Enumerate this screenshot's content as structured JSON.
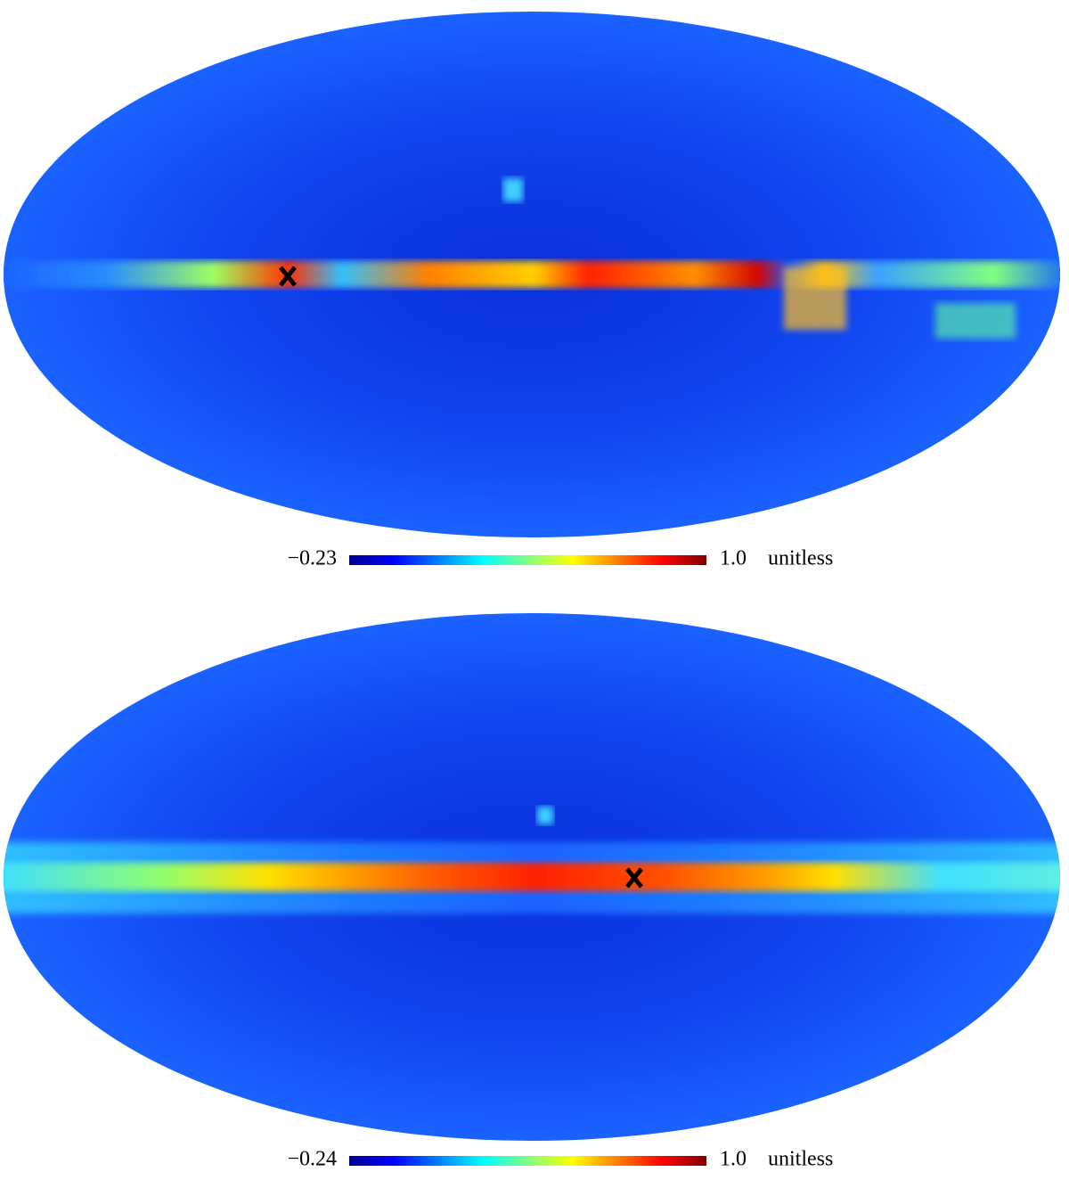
{
  "maps": [
    {
      "colorbar": {
        "min": {
          "value": -0.23,
          "label": "−0.23"
        },
        "max": {
          "value": 1.0,
          "label": "1.0"
        },
        "unit": "unitless"
      }
    },
    {
      "colorbar": {
        "min": {
          "value": -0.24,
          "label": "−0.24"
        },
        "max": {
          "value": 1.0,
          "label": "1.0"
        },
        "unit": "unitless"
      }
    }
  ]
}
